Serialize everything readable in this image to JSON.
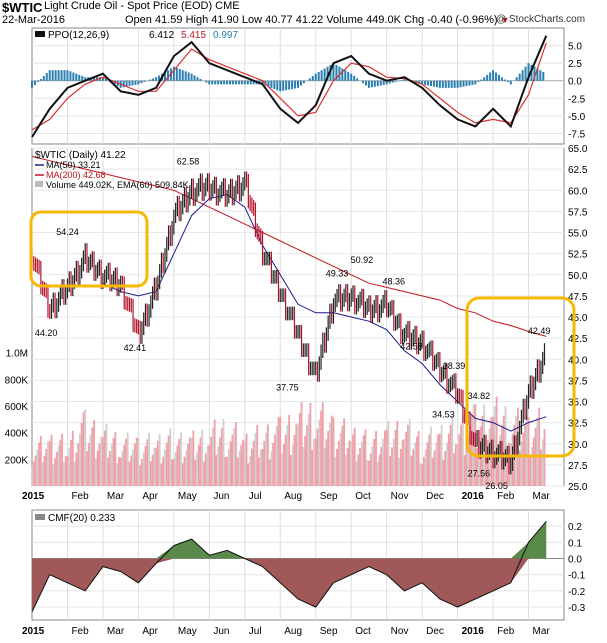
{
  "header": {
    "symbol": "$WTIC",
    "name": "Light Crude Oil - Spot Price (EOD) CME",
    "date": "22-Mar-2016",
    "open_label": "Open",
    "open": "41.59",
    "high_label": "High",
    "high": "41.90",
    "low_label": "Low",
    "low": "40.77",
    "last": "41.22",
    "volume_label": "Volume",
    "volume": "449.0K",
    "chg_label": "Chg",
    "chg": "-0.40 (-0.96%)",
    "brand": "@ StockCharts.com"
  },
  "colors": {
    "ma50": "#1a1a8c",
    "ma200": "#c0141c",
    "price_up": "#222222",
    "price_down": "#b0142b",
    "volume": "#f0a0a8",
    "highlight": "#f6b800",
    "ppo_hist": "#2a7fb0",
    "cmf_pos": "#5a8a4a",
    "cmf_neg": "#a05858"
  },
  "x_labels": [
    "2015",
    "Feb",
    "Mar",
    "Apr",
    "May",
    "Jun",
    "Jul",
    "Aug",
    "Sep",
    "Oct",
    "Nov",
    "Dec",
    "2016",
    "Feb",
    "Mar"
  ],
  "chart_data": [
    {
      "type": "line",
      "panel": "PPO",
      "title": "PPO(12,26,9)",
      "legend_values": {
        "ppo": "6.412",
        "signal": "5.415",
        "hist": "0.997"
      },
      "ylim": [
        -9,
        7.5
      ],
      "y_ticks": [
        "5.0",
        "2.5",
        "0.0",
        "-2.5",
        "-5.0",
        "-7.5"
      ],
      "x": [
        0,
        0.5,
        1,
        1.5,
        2,
        2.5,
        3,
        3.5,
        4,
        4.5,
        5,
        5.5,
        6,
        6.5,
        7,
        7.5,
        8,
        8.5,
        9,
        9.5,
        10,
        10.5,
        11,
        11.5,
        12,
        12.5,
        13,
        13.5,
        14,
        14.5
      ],
      "series": [
        {
          "name": "ppo",
          "values": [
            -8.0,
            -4.0,
            -1.0,
            0.0,
            1.0,
            -1.5,
            -2.0,
            -1.0,
            3.5,
            5.5,
            2.5,
            1.5,
            0.5,
            -0.5,
            -4.0,
            -6.0,
            -3.5,
            2.5,
            3.5,
            1.0,
            0.0,
            0.5,
            -1.0,
            -3.5,
            -5.5,
            -6.5,
            -4.0,
            -6.5,
            0.5,
            6.4
          ]
        },
        {
          "name": "signal",
          "values": [
            -7.0,
            -5.5,
            -2.5,
            -0.5,
            0.5,
            -0.5,
            -1.5,
            -1.5,
            1.5,
            4.5,
            3.0,
            2.0,
            1.0,
            0.0,
            -2.5,
            -5.0,
            -4.5,
            0.0,
            2.5,
            2.0,
            0.5,
            0.3,
            -0.5,
            -2.5,
            -4.5,
            -6.0,
            -5.5,
            -6.0,
            -2.0,
            5.4
          ]
        },
        {
          "name": "histogram",
          "values": [
            -1.0,
            1.5,
            1.5,
            0.5,
            0.5,
            -1.0,
            -0.5,
            0.5,
            2.0,
            1.0,
            -0.5,
            -0.5,
            -0.5,
            -0.5,
            -1.5,
            -1.0,
            1.0,
            2.5,
            1.0,
            -1.0,
            -0.5,
            0.2,
            -0.5,
            -1.0,
            -1.0,
            -0.5,
            1.5,
            -0.5,
            2.5,
            1.0
          ]
        }
      ]
    },
    {
      "type": "line",
      "panel": "Price",
      "title": "$WTIC (Daily) 41.22",
      "legend": [
        "MA(50) 33.21",
        "MA(200) 42.68",
        "Volume 449.02K, EMA(60) 509.84K"
      ],
      "ylim": [
        25,
        65
      ],
      "y_ticks": [
        "65.0",
        "62.5",
        "60.0",
        "57.5",
        "55.0",
        "52.5",
        "50.0",
        "47.5",
        "45.0",
        "42.5",
        "40.0",
        "37.5",
        "35.0",
        "32.5",
        "30.0",
        "27.5",
        "25.0"
      ],
      "volume_ticks": [
        "1.0M",
        "800K",
        "600K",
        "400K",
        "200K"
      ],
      "x": [
        0,
        0.5,
        1,
        1.5,
        2,
        2.5,
        3,
        3.5,
        4,
        4.5,
        5,
        5.5,
        6,
        6.5,
        7,
        7.5,
        8,
        8.5,
        9,
        9.5,
        10,
        10.5,
        11,
        11.5,
        12,
        12.5,
        13,
        13.5,
        14,
        14.5
      ],
      "series": [
        {
          "name": "price",
          "values": [
            52.5,
            46.0,
            48.5,
            52.0,
            50.0,
            49.0,
            43.0,
            48.5,
            57.0,
            60.0,
            60.5,
            59.5,
            61.0,
            53.0,
            48.0,
            43.0,
            38.0,
            47.0,
            47.5,
            46.0,
            46.5,
            43.0,
            42.0,
            39.0,
            36.0,
            30.0,
            29.0,
            28.0,
            36.0,
            41.2
          ]
        },
        {
          "name": "MA(50)",
          "values": [
            null,
            null,
            null,
            null,
            49.0,
            48.0,
            47.5,
            48.0,
            52.5,
            57.0,
            59.0,
            59.5,
            58.0,
            53.5,
            50.0,
            46.5,
            45.5,
            45.5,
            45.0,
            44.5,
            43.5,
            41.0,
            39.5,
            37.0,
            35.0,
            33.0,
            32.5,
            31.5,
            32.5,
            33.2
          ]
        },
        {
          "name": "MA(200)",
          "values": [
            64.0,
            63.5,
            63.0,
            62.5,
            62.0,
            61.5,
            61.0,
            60.5,
            60.0,
            59.0,
            58.0,
            57.0,
            56.0,
            55.0,
            54.0,
            53.0,
            52.0,
            51.0,
            50.0,
            49.0,
            48.5,
            48.0,
            47.5,
            47.0,
            46.0,
            45.5,
            44.5,
            44.0,
            43.3,
            42.7
          ]
        },
        {
          "name": "volume_k",
          "values": [
            250,
            300,
            280,
            420,
            350,
            300,
            280,
            300,
            320,
            300,
            350,
            400,
            300,
            350,
            380,
            450,
            500,
            400,
            350,
            300,
            350,
            400,
            300,
            350,
            400,
            450,
            500,
            450,
            400,
            450
          ]
        }
      ],
      "annotations": [
        {
          "x": 0.4,
          "y": 44.2,
          "text": "44.20"
        },
        {
          "x": 1.0,
          "y": 54.24,
          "text": "54.24"
        },
        {
          "x": 2.9,
          "y": 42.41,
          "text": "42.41"
        },
        {
          "x": 4.4,
          "y": 62.58,
          "text": "62.58"
        },
        {
          "x": 7.2,
          "y": 37.75,
          "text": "37.75"
        },
        {
          "x": 8.6,
          "y": 49.33,
          "text": "49.33"
        },
        {
          "x": 9.3,
          "y": 50.92,
          "text": "50.92"
        },
        {
          "x": 10.2,
          "y": 48.36,
          "text": "48.36"
        },
        {
          "x": 10.7,
          "y": 42.58,
          "text": "42.58"
        },
        {
          "x": 11.6,
          "y": 34.53,
          "text": "34.53"
        },
        {
          "x": 11.9,
          "y": 38.39,
          "text": "38.39"
        },
        {
          "x": 12.6,
          "y": 34.82,
          "text": "34.82"
        },
        {
          "x": 12.6,
          "y": 27.56,
          "text": "27.56"
        },
        {
          "x": 13.1,
          "y": 26.05,
          "text": "26.05"
        },
        {
          "x": 14.3,
          "y": 42.49,
          "text": "42.49"
        }
      ]
    },
    {
      "type": "area",
      "panel": "CMF",
      "title": "CMF(20) 0.233",
      "ylim": [
        -0.38,
        0.3
      ],
      "y_ticks": [
        "0.2",
        "0.1",
        "0.0",
        "-0.1",
        "-0.2",
        "-0.3"
      ],
      "x": [
        0,
        0.5,
        1,
        1.5,
        2,
        2.5,
        3,
        3.5,
        4,
        4.5,
        5,
        5.5,
        6,
        6.5,
        7,
        7.5,
        8,
        8.5,
        9,
        9.5,
        10,
        10.5,
        11,
        11.5,
        12,
        12.5,
        13,
        13.5,
        14,
        14.5
      ],
      "values": [
        -0.33,
        -0.1,
        -0.15,
        -0.2,
        -0.05,
        -0.08,
        -0.15,
        -0.03,
        0.08,
        0.12,
        0.02,
        0.05,
        0.0,
        -0.05,
        -0.15,
        -0.25,
        -0.3,
        -0.15,
        -0.1,
        -0.05,
        -0.1,
        -0.2,
        -0.15,
        -0.25,
        -0.3,
        -0.25,
        -0.2,
        -0.15,
        0.1,
        0.23
      ]
    }
  ]
}
